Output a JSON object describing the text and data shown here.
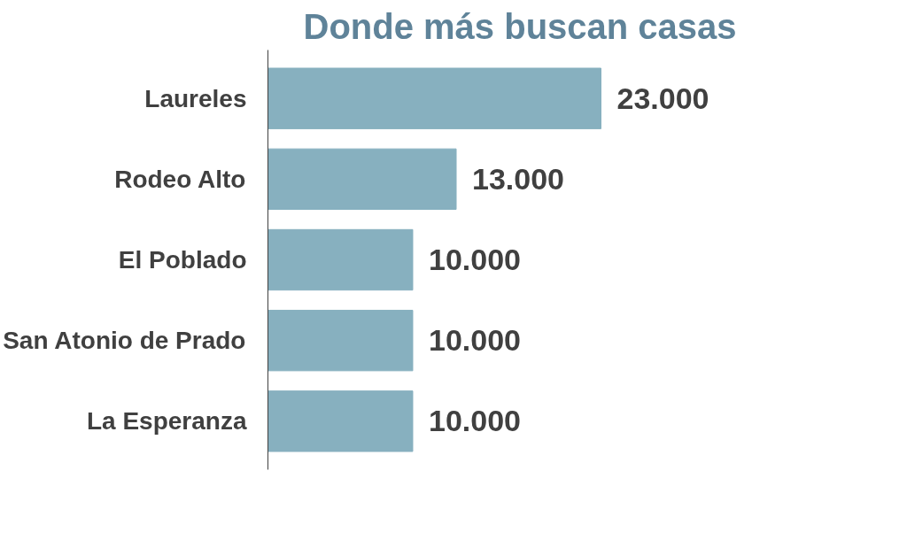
{
  "chart_data": {
    "type": "bar",
    "orientation": "horizontal",
    "title": "Donde más buscan casas",
    "categories": [
      "Laureles",
      "Rodeo Alto",
      "El Poblado",
      "San Atonio de Prado",
      "La Esperanza"
    ],
    "values": [
      23000,
      13000,
      10000,
      10000,
      10000
    ],
    "value_labels": [
      "23.000",
      "13.000",
      "10.000",
      "10.000",
      "10.000"
    ],
    "color": "#87b0bf",
    "tick_labels": "y"
  }
}
